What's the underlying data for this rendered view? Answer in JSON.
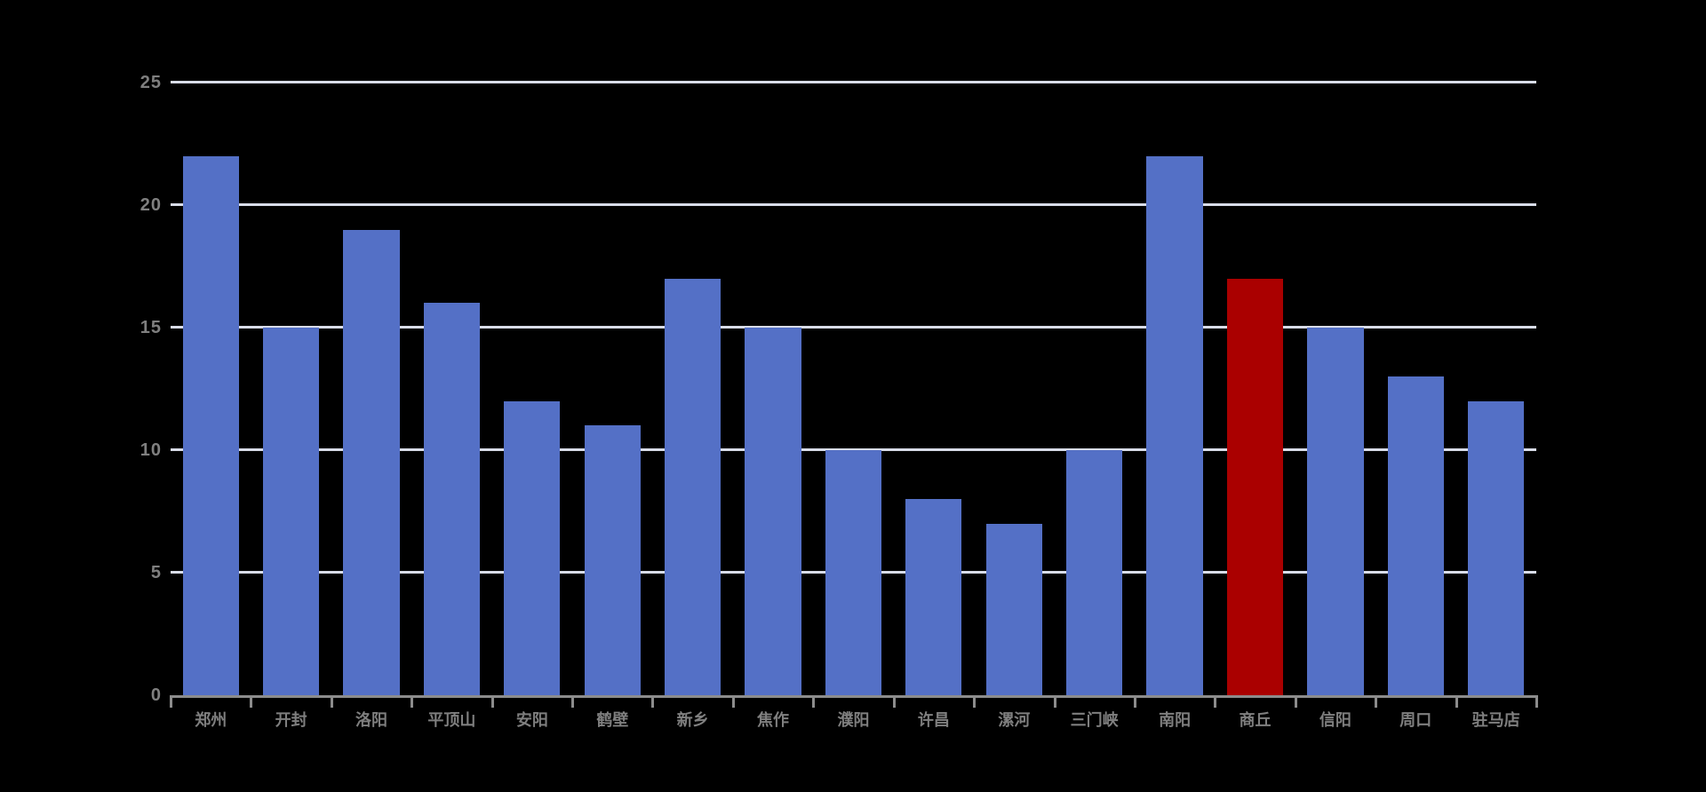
{
  "chart_data": {
    "type": "bar",
    "title": "",
    "categories": [
      "郑州",
      "开封",
      "洛阳",
      "平顶山",
      "安阳",
      "鹤壁",
      "新乡",
      "焦作",
      "濮阳",
      "许昌",
      "漯河",
      "三门峡",
      "南阳",
      "商丘",
      "信阳",
      "周口",
      "驻马店"
    ],
    "values": [
      22,
      15,
      19,
      16,
      12,
      11,
      17,
      15,
      10,
      8,
      7,
      10,
      22,
      17,
      15,
      13,
      12
    ],
    "highlight": {
      "index": 13,
      "category": "商丘",
      "color": "#AA0000"
    },
    "default_bar_color": "#5470C6",
    "xlabel": "",
    "ylabel": "",
    "ylim": [
      0,
      25
    ],
    "yticks": [
      0,
      5,
      10,
      15,
      20,
      25
    ],
    "ytick_labels": [
      "0",
      "5",
      "10",
      "15",
      "20",
      "25"
    ],
    "grid": true,
    "legend": "none",
    "colors": {
      "background": "#000000",
      "gridline": "#D8DCE8",
      "axis_line": "#8C8C8C",
      "tick_mark": "#8C8C8C",
      "axis_label_text": "#7F7F7F"
    }
  }
}
